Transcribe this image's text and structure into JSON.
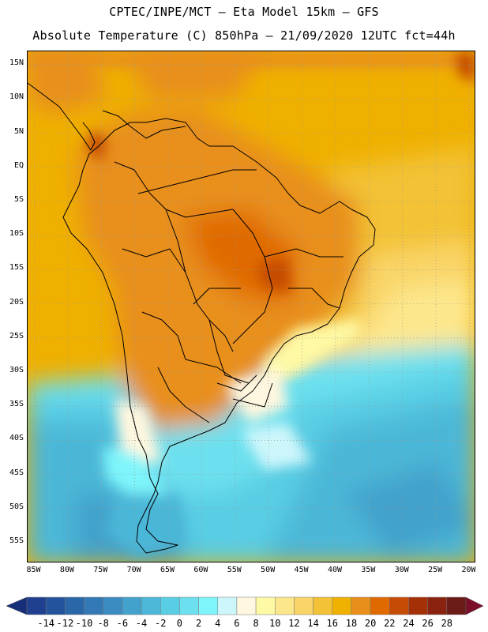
{
  "header": {
    "title_line1": "CPTEC/INPE/MCT –  Eta Model 15km – GFS",
    "title_line2": "Absolute Temperature (C) 850hPa – 21/09/2020 12UTC fct=44h"
  },
  "map": {
    "lon_range": [
      -86,
      -19
    ],
    "lat_range": [
      -58,
      17
    ],
    "lat_ticks": [
      "15N",
      "10N",
      "5N",
      "EQ",
      "5S",
      "10S",
      "15S",
      "20S",
      "25S",
      "30S",
      "35S",
      "40S",
      "45S",
      "50S",
      "55S"
    ],
    "lon_ticks": [
      "85W",
      "80W",
      "75W",
      "70W",
      "65W",
      "60W",
      "55W",
      "50W",
      "45W",
      "40W",
      "35W",
      "30W",
      "25W",
      "20W"
    ]
  },
  "colorbar": {
    "labels": [
      "-14",
      "-12",
      "-10",
      "-8",
      "-6",
      "-4",
      "-2",
      "0",
      "2",
      "4",
      "6",
      "8",
      "10",
      "12",
      "14",
      "16",
      "18",
      "20",
      "22",
      "24",
      "26",
      "28"
    ],
    "colors": [
      "#1f3f8f",
      "#22539c",
      "#2a67a9",
      "#3379b5",
      "#3b8cc0",
      "#42a2cc",
      "#4cb7d8",
      "#58cde4",
      "#6ce0ee",
      "#7ef5fb",
      "#cdf6fb",
      "#fff7df",
      "#fef9a4",
      "#fde78c",
      "#f9d568",
      "#f3c236",
      "#efb000",
      "#e88f1b",
      "#e06a00",
      "#c64c06",
      "#a33007",
      "#8a2210",
      "#6a1a17"
    ],
    "left_arrow_color": "#172e78",
    "right_arrow_color": "#7b0f2a"
  }
}
